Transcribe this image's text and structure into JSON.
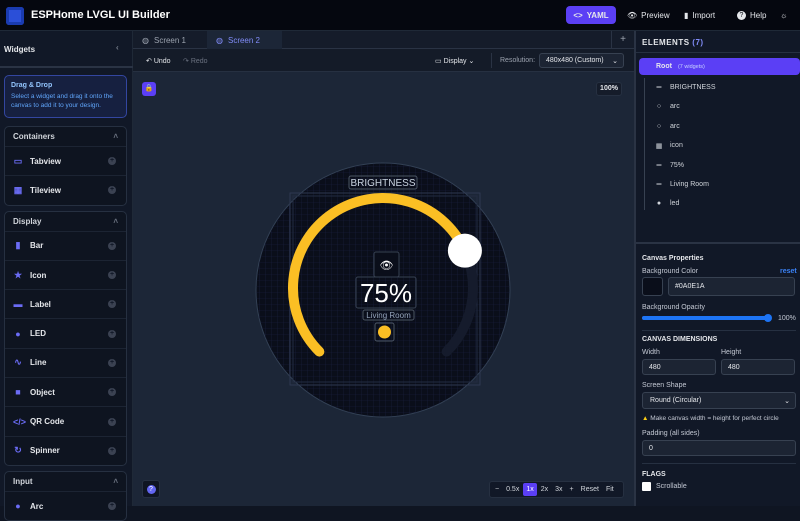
{
  "header": {
    "title": "ESPHome LVGL UI Builder",
    "yaml": "YAML",
    "preview": "Preview",
    "import": "Import",
    "help": "Help"
  },
  "sidebar": {
    "title": "Widgets",
    "dragdrop_title": "Drag & Drop",
    "dragdrop_text": "Select a widget and drag it onto the canvas to add it to your design.",
    "groups": [
      {
        "label": "Containers",
        "items": [
          {
            "label": "Tabview",
            "icon": "tabview-icon"
          },
          {
            "label": "Tileview",
            "icon": "grid-icon"
          }
        ]
      },
      {
        "label": "Display",
        "items": [
          {
            "label": "Bar",
            "icon": "bar-chart-icon"
          },
          {
            "label": "Icon",
            "icon": "star-icon"
          },
          {
            "label": "Label",
            "icon": "tag-icon"
          },
          {
            "label": "LED",
            "icon": "bulb-icon"
          },
          {
            "label": "Line",
            "icon": "line-chart-icon"
          },
          {
            "label": "Object",
            "icon": "square-icon"
          },
          {
            "label": "QR Code",
            "icon": "code-icon"
          },
          {
            "label": "Spinner",
            "icon": "refresh-icon"
          }
        ]
      },
      {
        "label": "Input",
        "items": [
          {
            "label": "Arc",
            "icon": "circle-icon"
          }
        ]
      }
    ]
  },
  "tabs": [
    {
      "label": "Screen 1"
    },
    {
      "label": "Screen 2",
      "active": true
    }
  ],
  "toolbar": {
    "undo": "Undo",
    "redo": "Redo",
    "display": "Display",
    "resolution_label": "Resolution:",
    "resolution": "480x480 (Custom)"
  },
  "canvas": {
    "zoom": "100%",
    "brightness": "BRIGHTNESS",
    "value": "75%",
    "room": "Living Room",
    "arc_value": 75,
    "accent": "#fbbf24"
  },
  "zoombar": {
    "minus": "−",
    "z05": "0.5x",
    "z1": "1x",
    "z2": "2x",
    "z3": "3x",
    "plus": "+",
    "reset": "Reset",
    "fit": "Fit"
  },
  "elements": {
    "title": "ELEMENTS",
    "count": "(7)",
    "root": "Root",
    "root_sub": "(7 widgets)",
    "items": [
      {
        "label": "BRIGHTNESS",
        "icon": "label-icon"
      },
      {
        "label": "arc",
        "icon": "circle-icon"
      },
      {
        "label": "arc",
        "icon": "circle-icon"
      },
      {
        "label": "icon",
        "icon": "grid-icon"
      },
      {
        "label": "75%",
        "icon": "label-icon"
      },
      {
        "label": "Living Room",
        "icon": "label-icon"
      },
      {
        "label": "led",
        "icon": "bulb-icon"
      }
    ]
  },
  "props": {
    "title": "Canvas Properties",
    "bg_color_label": "Background Color",
    "reset": "reset",
    "bg_color": "#0A0E1A",
    "opacity_label": "Background Opacity",
    "opacity": "100%",
    "dims_title": "CANVAS DIMENSIONS",
    "width_label": "Width",
    "width": "480",
    "height_label": "Height",
    "height": "480",
    "shape_label": "Screen Shape",
    "shape": "Round (Circular)",
    "warning": "Make canvas width = height for perfect circle",
    "padding_label": "Padding (all sides)",
    "padding": "0",
    "flags_title": "FLAGS",
    "scrollable": "Scrollable"
  }
}
